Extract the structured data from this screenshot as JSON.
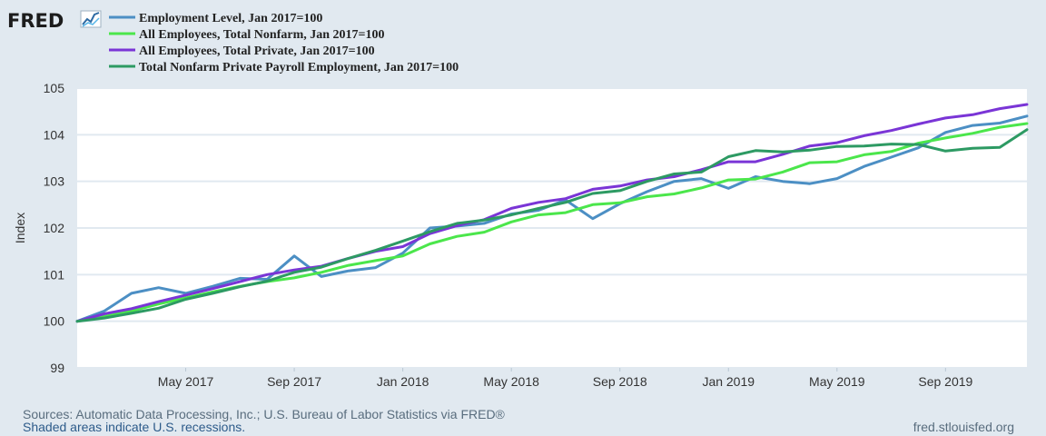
{
  "logo": {
    "text": "FRED"
  },
  "footer": {
    "sources": "Sources: Automatic Data Processing, Inc.; U.S. Bureau of Labor Statistics via FRED®",
    "shaded_note": "Shaded areas indicate U.S. recessions.",
    "site": "fred.stlouisfed.org"
  },
  "chart_data": {
    "type": "line",
    "title": "",
    "xlabel": "",
    "ylabel": "Index",
    "ylim": [
      99,
      105
    ],
    "yticks": [
      99,
      100,
      101,
      102,
      103,
      104,
      105
    ],
    "x": [
      "2017-01",
      "2017-02",
      "2017-03",
      "2017-04",
      "2017-05",
      "2017-06",
      "2017-07",
      "2017-08",
      "2017-09",
      "2017-10",
      "2017-11",
      "2017-12",
      "2018-01",
      "2018-02",
      "2018-03",
      "2018-04",
      "2018-05",
      "2018-06",
      "2018-07",
      "2018-08",
      "2018-09",
      "2018-10",
      "2018-11",
      "2018-12",
      "2019-01",
      "2019-02",
      "2019-03",
      "2019-04",
      "2019-05",
      "2019-06",
      "2019-07",
      "2019-08",
      "2019-09",
      "2019-10",
      "2019-11",
      "2019-12"
    ],
    "xticks": [
      {
        "x": "2017-05",
        "label": "May 2017"
      },
      {
        "x": "2017-09",
        "label": "Sep 2017"
      },
      {
        "x": "2018-01",
        "label": "Jan 2018"
      },
      {
        "x": "2018-05",
        "label": "May 2018"
      },
      {
        "x": "2018-09",
        "label": "Sep 2018"
      },
      {
        "x": "2019-01",
        "label": "Jan 2019"
      },
      {
        "x": "2019-05",
        "label": "May 2019"
      },
      {
        "x": "2019-09",
        "label": "Sep 2019"
      }
    ],
    "grid": true,
    "legend_position": "top-left",
    "series": [
      {
        "name": "Employment Level, Jan 2017=100",
        "color": "#4c8fc4",
        "values": [
          100.0,
          100.22,
          100.6,
          100.72,
          100.6,
          100.75,
          100.92,
          100.9,
          101.4,
          100.96,
          101.08,
          101.15,
          101.46,
          102.0,
          102.04,
          102.1,
          102.3,
          102.38,
          102.6,
          102.2,
          102.52,
          102.78,
          103.0,
          103.06,
          102.85,
          103.1,
          103.0,
          102.95,
          103.06,
          103.32,
          103.52,
          103.72,
          104.05,
          104.2,
          104.25,
          104.4
        ]
      },
      {
        "name": "All Employees, Total Nonfarm, Jan 2017=100",
        "color": "#4be64b",
        "values": [
          100.0,
          100.1,
          100.22,
          100.37,
          100.5,
          100.63,
          100.75,
          100.85,
          100.93,
          101.05,
          101.2,
          101.3,
          101.4,
          101.66,
          101.82,
          101.91,
          102.13,
          102.28,
          102.33,
          102.5,
          102.54,
          102.67,
          102.73,
          102.86,
          103.03,
          103.05,
          103.2,
          103.4,
          103.42,
          103.57,
          103.64,
          103.82,
          103.93,
          104.03,
          104.16,
          104.24
        ]
      },
      {
        "name": "All Employees, Total Private, Jan 2017=100",
        "color": "#7a35d6",
        "values": [
          100.0,
          100.16,
          100.27,
          100.42,
          100.56,
          100.7,
          100.85,
          101.0,
          101.1,
          101.18,
          101.35,
          101.5,
          101.6,
          101.88,
          102.05,
          102.18,
          102.42,
          102.55,
          102.63,
          102.83,
          102.9,
          103.03,
          103.1,
          103.25,
          103.42,
          103.42,
          103.58,
          103.76,
          103.83,
          103.98,
          104.09,
          104.23,
          104.36,
          104.43,
          104.56,
          104.65
        ]
      },
      {
        "name": "Total Nonfarm Private Payroll Employment, Jan 2017=100",
        "color": "#2d9a63",
        "values": [
          100.0,
          100.07,
          100.17,
          100.28,
          100.47,
          100.6,
          100.74,
          100.86,
          101.05,
          101.16,
          101.35,
          101.52,
          101.72,
          101.92,
          102.1,
          102.17,
          102.28,
          102.42,
          102.55,
          102.74,
          102.8,
          103.0,
          103.16,
          103.2,
          103.53,
          103.66,
          103.63,
          103.67,
          103.75,
          103.76,
          103.8,
          103.79,
          103.65,
          103.71,
          103.73,
          104.11
        ]
      }
    ]
  }
}
